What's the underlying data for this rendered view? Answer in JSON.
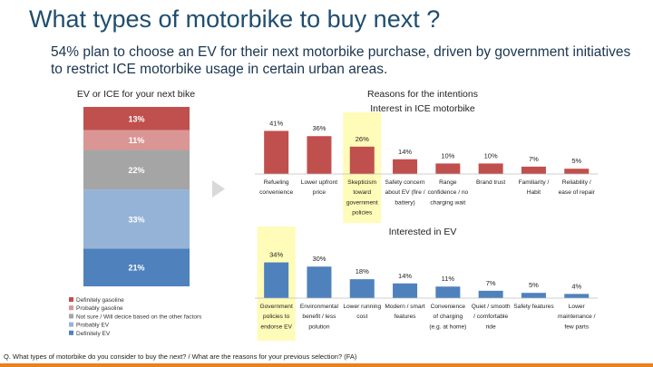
{
  "header": {
    "title": "What types of motorbike to buy next ?",
    "subtitle": "54% plan to choose an EV for their next motorbike purchase, driven by government initiatives to restrict ICE motorbike usage in certain urban areas."
  },
  "footnote": "Q. What types of motorbike do you consider to buy the next? / What are the reasons for your previous selection? (FA)",
  "colors": {
    "definitely_gasoline": "#c0504d",
    "probably_gasoline": "#d99694",
    "not_sure": "#a5a5a5",
    "probably_ev": "#95b3d7",
    "definitely_ev": "#4f81bd",
    "highlight": "#fffbb8"
  },
  "chart_data": [
    {
      "type": "bar",
      "stacked": true,
      "title": "EV or ICE for your next bike",
      "series": [
        {
          "name": "Definitely gasoline",
          "values": [
            13
          ],
          "label": "13%"
        },
        {
          "name": "Probably gasoline",
          "values": [
            11
          ],
          "label": "11%"
        },
        {
          "name": "Not sure / Will decice based on the other factors",
          "values": [
            22
          ],
          "label": "22%"
        },
        {
          "name": "Probably EV",
          "values": [
            33
          ],
          "label": "33%"
        },
        {
          "name": "Definitely EV",
          "values": [
            21
          ],
          "label": "21%"
        }
      ],
      "legend": "bottom"
    },
    {
      "type": "bar",
      "title": "Reasons for the intentions",
      "subtitle": "Interest in ICE motorbike",
      "categories": [
        [
          "Refueling",
          "convenience"
        ],
        [
          "Lower upfront",
          "price"
        ],
        [
          "Skepticism",
          "toward",
          "government",
          "policies"
        ],
        [
          "Safety concern",
          "about EV (fire /",
          "battery)"
        ],
        [
          "Range",
          "confidence / no",
          "charging wait"
        ],
        [
          "Brand trust"
        ],
        [
          "Familiarity /",
          "Habit"
        ],
        [
          "Reliability /",
          "ease of repair"
        ]
      ],
      "values": [
        41,
        36,
        26,
        14,
        10,
        10,
        7,
        5
      ],
      "data_labels": [
        "41%",
        "36%",
        "26%",
        "14%",
        "10%",
        "10%",
        "7%",
        "5%"
      ],
      "highlighted_category_index": 2,
      "ylim": [
        0,
        45
      ]
    },
    {
      "type": "bar",
      "title": "Interested in EV",
      "categories": [
        [
          "Government",
          "policies to",
          "endorse EV"
        ],
        [
          "Environmental",
          "benefit / less",
          "polution"
        ],
        [
          "Lower running",
          "cost"
        ],
        [
          "Modern / smart",
          "features"
        ],
        [
          "Convenience",
          "of charging",
          "(e.g. at home)"
        ],
        [
          "Quiet / smooth",
          "/ comfortable",
          "ride"
        ],
        [
          "Safety features"
        ],
        [
          "Lower",
          "maintenance /",
          "few parts"
        ]
      ],
      "values": [
        34,
        30,
        18,
        14,
        11,
        7,
        5,
        4
      ],
      "data_labels": [
        "34%",
        "30%",
        "18%",
        "14%",
        "11%",
        "7%",
        "5%",
        "4%"
      ],
      "highlighted_category_index": 0,
      "ylim": [
        0,
        45
      ]
    }
  ]
}
